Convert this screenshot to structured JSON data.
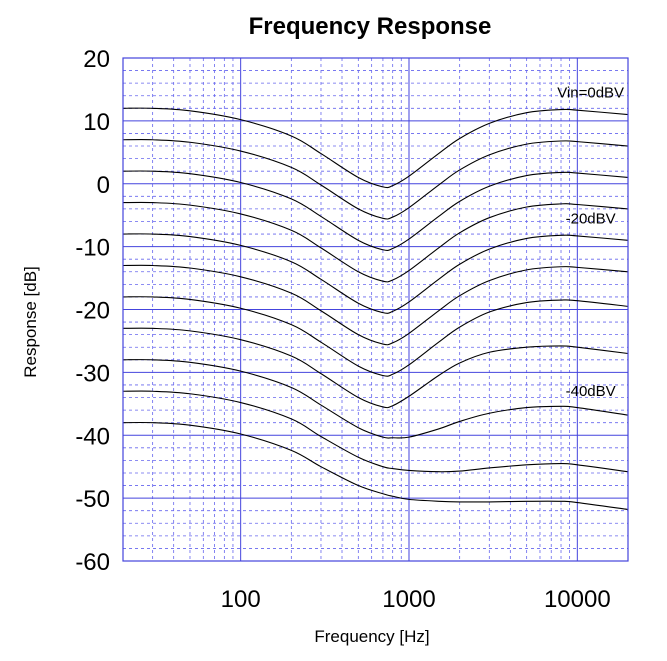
{
  "chart_data": {
    "type": "line",
    "title": "Frequency Response",
    "xlabel": "Frequency [Hz]",
    "ylabel": "Response [dB]",
    "x_scale": "log",
    "xlim": [
      20,
      20000
    ],
    "ylim": [
      -60,
      20
    ],
    "x_ticks": [
      {
        "value": 100,
        "label": "100"
      },
      {
        "value": 1000,
        "label": "1000"
      },
      {
        "value": 10000,
        "label": "10000"
      }
    ],
    "y_ticks": [
      {
        "value": 20,
        "label": "20"
      },
      {
        "value": 10,
        "label": "10"
      },
      {
        "value": 0,
        "label": "0"
      },
      {
        "value": -10,
        "label": "-10"
      },
      {
        "value": -20,
        "label": "-20"
      },
      {
        "value": -30,
        "label": "-30"
      },
      {
        "value": -40,
        "label": "-40"
      },
      {
        "value": -50,
        "label": "-50"
      },
      {
        "value": -60,
        "label": "-60"
      }
    ],
    "grid": true,
    "colors": {
      "major_grid": "#4444dd",
      "minor_grid": "#6666ee",
      "series": "#000000"
    },
    "x": [
      20,
      30,
      50,
      100,
      200,
      300,
      500,
      700,
      800,
      1000,
      1500,
      2000,
      3000,
      5000,
      8000,
      10000,
      20000
    ],
    "series": [
      {
        "values": [
          12.0,
          12.0,
          11.6,
          10.2,
          7.6,
          4.8,
          1.0,
          -0.5,
          -0.3,
          1.2,
          4.8,
          7.2,
          9.6,
          11.3,
          11.8,
          11.7,
          11.0
        ]
      },
      {
        "values": [
          7.0,
          7.0,
          6.6,
          5.2,
          2.6,
          -0.2,
          -4.0,
          -5.5,
          -5.3,
          -3.8,
          -0.2,
          2.2,
          4.6,
          6.3,
          6.8,
          6.7,
          6.0
        ]
      },
      {
        "values": [
          2.0,
          2.0,
          1.6,
          0.2,
          -2.4,
          -5.2,
          -9.0,
          -10.5,
          -10.3,
          -8.8,
          -5.2,
          -2.8,
          -0.4,
          1.3,
          1.8,
          1.7,
          1.0
        ]
      },
      {
        "values": [
          -3.0,
          -3.0,
          -3.4,
          -4.8,
          -7.4,
          -10.2,
          -14.0,
          -15.5,
          -15.3,
          -13.8,
          -10.2,
          -7.8,
          -5.4,
          -3.7,
          -3.2,
          -3.3,
          -4.0
        ]
      },
      {
        "values": [
          -8.0,
          -8.0,
          -8.4,
          -9.8,
          -12.4,
          -15.2,
          -19.0,
          -20.5,
          -20.3,
          -18.8,
          -15.2,
          -12.8,
          -10.4,
          -8.7,
          -8.2,
          -8.3,
          -9.0
        ]
      },
      {
        "values": [
          -13.0,
          -13.0,
          -13.4,
          -14.8,
          -17.4,
          -20.2,
          -24.0,
          -25.5,
          -25.3,
          -23.8,
          -20.2,
          -17.8,
          -15.4,
          -13.7,
          -13.2,
          -13.3,
          -14.0
        ]
      },
      {
        "values": [
          -18.0,
          -18.0,
          -18.4,
          -19.8,
          -22.4,
          -25.2,
          -29.0,
          -30.5,
          -30.3,
          -28.8,
          -25.2,
          -22.8,
          -20.4,
          -18.9,
          -18.5,
          -18.6,
          -19.5
        ]
      },
      {
        "values": [
          -23.0,
          -23.0,
          -23.4,
          -24.8,
          -27.4,
          -30.2,
          -34.0,
          -35.5,
          -35.3,
          -33.8,
          -30.5,
          -28.5,
          -26.8,
          -26.0,
          -25.8,
          -26.0,
          -27.0
        ]
      },
      {
        "values": [
          -28.0,
          -28.0,
          -28.4,
          -29.8,
          -32.4,
          -35.2,
          -38.8,
          -40.3,
          -40.4,
          -40.3,
          -39.0,
          -37.8,
          -36.5,
          -35.6,
          -35.4,
          -35.6,
          -36.8
        ]
      },
      {
        "values": [
          -33.0,
          -33.0,
          -33.4,
          -34.8,
          -37.4,
          -40.2,
          -43.5,
          -45.0,
          -45.3,
          -45.6,
          -45.8,
          -45.7,
          -45.2,
          -44.7,
          -44.5,
          -44.7,
          -45.8
        ]
      },
      {
        "values": [
          -38.0,
          -38.0,
          -38.4,
          -39.8,
          -42.4,
          -45.0,
          -48.0,
          -49.3,
          -49.7,
          -50.2,
          -50.5,
          -50.6,
          -50.6,
          -50.5,
          -50.5,
          -50.7,
          -51.8
        ]
      }
    ],
    "annotations": [
      {
        "text": "Vin=0dBV",
        "x": 12000,
        "y": 14.5
      },
      {
        "text": "-20dBV",
        "x": 12000,
        "y": -5.5
      },
      {
        "text": "-40dBV",
        "x": 12000,
        "y": -33.0
      }
    ]
  }
}
